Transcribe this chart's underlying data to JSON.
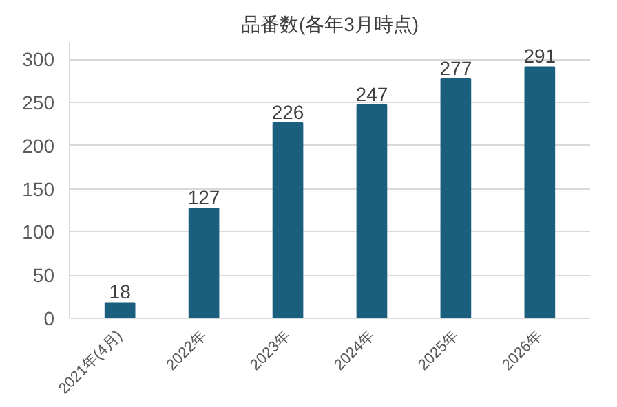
{
  "chart_data": {
    "type": "bar",
    "title": "品番数(各年3月時点)",
    "categories": [
      "2021年(4月)",
      "2022年",
      "2023年",
      "2024年",
      "2025年",
      "2026年"
    ],
    "values": [
      18,
      127,
      226,
      247,
      277,
      291
    ],
    "color": "#1b5f7e",
    "ylim": [
      0,
      320
    ],
    "yticks": [
      0,
      50,
      100,
      150,
      200,
      250,
      300
    ],
    "grid": "y",
    "data_labels": true
  }
}
